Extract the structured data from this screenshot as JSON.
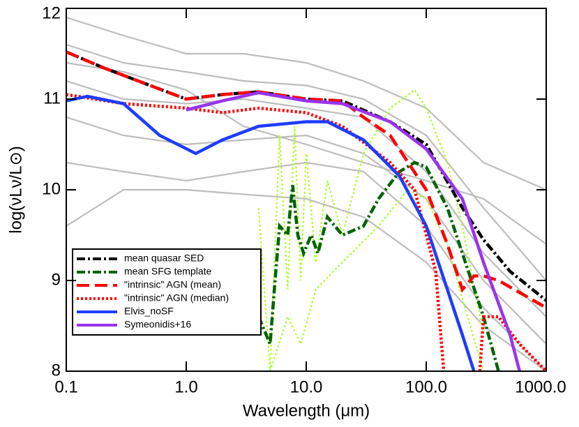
{
  "chart_data": {
    "type": "line",
    "xlabel": "Wavelength (μm)",
    "ylabel": "log(νLν/L⊙)",
    "xscale": "log",
    "xlim": [
      0.1,
      1000
    ],
    "ylim": [
      8,
      12
    ],
    "xticks": [
      {
        "value": 0.1,
        "label": "0.1"
      },
      {
        "value": 1,
        "label": "1.0"
      },
      {
        "value": 10,
        "label": "10.0"
      },
      {
        "value": 100,
        "label": "100.0"
      },
      {
        "value": 1000,
        "label": "1000.0"
      }
    ],
    "yticks": [
      8,
      9,
      10,
      11,
      12
    ],
    "legend": "lower-left",
    "series": [
      {
        "color": "#bdbdbd",
        "style": "solid",
        "x": [
          0.1,
          0.3,
          1,
          3,
          10,
          30,
          100,
          300,
          1000
        ],
        "values": [
          11.9,
          11.7,
          11.5,
          11.5,
          11.4,
          11.2,
          10.9,
          10.3,
          10.0
        ]
      },
      {
        "color": "#bdbdbd",
        "style": "solid",
        "x": [
          0.1,
          0.3,
          1,
          3,
          10,
          30,
          100,
          300,
          1000
        ],
        "values": [
          11.6,
          11.4,
          11.3,
          11.2,
          11.15,
          11.0,
          10.6,
          9.8,
          9.0
        ]
      },
      {
        "color": "#bdbdbd",
        "style": "solid",
        "x": [
          0.1,
          0.3,
          1,
          3,
          10,
          30,
          100,
          300,
          1000
        ],
        "values": [
          11.2,
          11.0,
          10.95,
          11.0,
          10.9,
          10.8,
          10.2,
          9.3,
          8.6
        ]
      },
      {
        "color": "#bdbdbd",
        "style": "solid",
        "x": [
          0.1,
          0.3,
          1,
          3,
          10,
          30,
          100,
          300,
          1000
        ],
        "values": [
          10.8,
          10.6,
          10.5,
          10.55,
          10.6,
          10.4,
          9.9,
          9.0,
          8.3
        ]
      },
      {
        "color": "#bdbdbd",
        "style": "solid",
        "x": [
          0.1,
          0.3,
          1,
          3,
          10,
          30,
          100,
          300,
          1000
        ],
        "values": [
          10.3,
          10.2,
          10.1,
          10.2,
          10.3,
          10.2,
          9.6,
          8.7,
          8.0
        ]
      },
      {
        "color": "#bdbdbd",
        "style": "solid",
        "x": [
          0.1,
          0.3,
          1,
          3,
          10,
          30,
          100,
          300,
          1000
        ],
        "values": [
          9.6,
          10.0,
          10.0,
          9.95,
          9.9,
          9.7,
          9.2,
          8.5,
          8.0
        ]
      },
      {
        "color": "#bdbdbd",
        "style": "solid",
        "x": [
          0.1,
          0.3,
          1,
          3,
          10,
          30,
          100,
          300,
          1000
        ],
        "values": [
          11.4,
          11.3,
          11.1,
          10.7,
          10.5,
          10.3,
          10.1,
          9.9,
          9.4
        ]
      },
      {
        "color": "#adff2f",
        "style": "dotted",
        "x": [
          4,
          5,
          6,
          7,
          8,
          9,
          10,
          12,
          15,
          20,
          30,
          50,
          80,
          100,
          150,
          200,
          300
        ],
        "values": [
          9.8,
          8.0,
          10.6,
          8.9,
          10.7,
          9.0,
          10.4,
          9.2,
          10.1,
          9.5,
          10.4,
          10.9,
          11.1,
          10.9,
          10.3,
          9.6,
          8.4
        ]
      },
      {
        "color": "#adff2f",
        "style": "dotted",
        "x": [
          5,
          7,
          9,
          12,
          20,
          40,
          70,
          100,
          150,
          200,
          300
        ],
        "values": [
          8.0,
          8.6,
          8.3,
          8.9,
          9.2,
          9.6,
          10.0,
          9.9,
          9.4,
          8.8,
          8.0
        ]
      },
      {
        "name": "mean quasar SED",
        "color": "#000000",
        "style": "dashdot",
        "x": [
          0.1,
          0.2,
          0.5,
          1,
          2,
          4,
          10,
          20,
          50,
          100,
          200,
          300,
          500,
          1000
        ],
        "values": [
          11.52,
          11.35,
          11.15,
          11.0,
          11.05,
          11.08,
          11.0,
          10.98,
          10.75,
          10.5,
          9.8,
          9.45,
          9.1,
          8.78
        ]
      },
      {
        "name": "mean SFG template",
        "color": "#006400",
        "style": "dashdot",
        "x": [
          4,
          5,
          5.5,
          6,
          7,
          7.7,
          8.5,
          9.5,
          11,
          12.5,
          15,
          20,
          30,
          40,
          60,
          80,
          100,
          150,
          200,
          300,
          400
        ],
        "values": [
          8.6,
          8.3,
          9.0,
          9.6,
          9.5,
          10.05,
          9.5,
          9.3,
          9.5,
          9.3,
          9.7,
          9.5,
          9.6,
          9.9,
          10.2,
          10.3,
          10.25,
          9.8,
          9.3,
          8.6,
          8.0
        ]
      },
      {
        "name": "\"intrinsic\" AGN (mean)",
        "color": "#ff0000",
        "style": "dashed",
        "x": [
          0.1,
          0.2,
          0.5,
          1,
          2,
          4,
          10,
          20,
          30,
          50,
          100,
          150,
          200,
          250,
          300,
          400,
          1000
        ],
        "values": [
          11.52,
          11.35,
          11.15,
          11.0,
          11.05,
          11.08,
          11.0,
          10.98,
          10.8,
          10.6,
          10.0,
          9.4,
          8.9,
          9.05,
          9.05,
          9.0,
          8.7
        ]
      },
      {
        "name": "\"intrinsic\" AGN (median)",
        "color": "#ff0000",
        "style": "dotted",
        "x": [
          0.1,
          0.3,
          1,
          2,
          4,
          10,
          20,
          50,
          80,
          120,
          140,
          200,
          280,
          300,
          400,
          600,
          1000
        ],
        "values": [
          11.05,
          10.95,
          10.9,
          10.85,
          10.9,
          10.85,
          10.7,
          10.3,
          10.0,
          9.1,
          8.0,
          null,
          8.0,
          8.6,
          8.6,
          8.3,
          8.0
        ]
      },
      {
        "name": "Elvis_noSF",
        "color": "#1e3cff",
        "style": "solid",
        "x": [
          0.1,
          0.15,
          0.3,
          0.6,
          1.2,
          2,
          4,
          10,
          15,
          30,
          60,
          100,
          150,
          200,
          250
        ],
        "values": [
          10.98,
          11.03,
          10.95,
          10.6,
          10.4,
          10.55,
          10.7,
          10.75,
          10.75,
          10.55,
          10.15,
          9.6,
          8.9,
          8.4,
          8.0
        ]
      },
      {
        "name": "Symeonidis+16",
        "color": "#9933ee",
        "style": "solid",
        "x": [
          1,
          2,
          4,
          10,
          20,
          50,
          100,
          200,
          300,
          500,
          600
        ],
        "values": [
          10.88,
          10.98,
          11.07,
          10.98,
          10.95,
          10.75,
          10.45,
          9.9,
          9.2,
          8.4,
          8.0
        ]
      }
    ]
  }
}
